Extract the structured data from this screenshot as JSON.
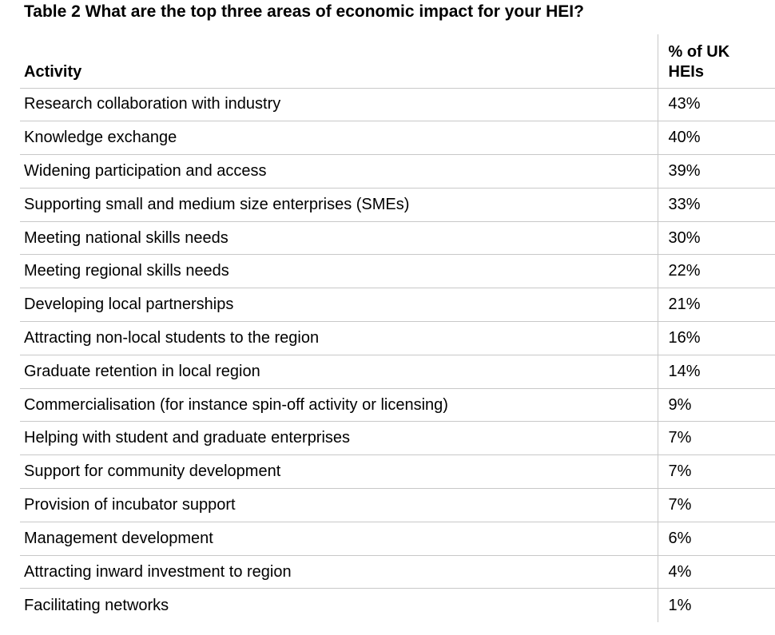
{
  "title": "Table 2 What are the top three areas of economic impact for your HEI?",
  "table": {
    "header": {
      "activity": "Activity",
      "percent": "% of UK\nHEIs"
    },
    "rows": [
      {
        "activity": "Research collaboration with industry",
        "percent": "43%"
      },
      {
        "activity": "Knowledge exchange",
        "percent": "40%"
      },
      {
        "activity": "Widening participation and access",
        "percent": "39%"
      },
      {
        "activity": "Supporting small and medium size enterprises (SMEs)",
        "percent": "33%"
      },
      {
        "activity": "Meeting national skills needs",
        "percent": "30%"
      },
      {
        "activity": "Meeting regional skills needs",
        "percent": "22%"
      },
      {
        "activity": "Developing local partnerships",
        "percent": "21%"
      },
      {
        "activity": "Attracting non-local students to the region",
        "percent": "16%"
      },
      {
        "activity": "Graduate retention in local region",
        "percent": "14%"
      },
      {
        "activity": "Commercialisation (for instance spin-off activity or licensing)",
        "percent": "9%"
      },
      {
        "activity": "Helping with student and graduate enterprises",
        "percent": "7%"
      },
      {
        "activity": "Support for community development",
        "percent": "7%"
      },
      {
        "activity": "Provision of incubator support",
        "percent": "7%"
      },
      {
        "activity": "Management development",
        "percent": "6%"
      },
      {
        "activity": "Attracting inward investment to region",
        "percent": "4%"
      },
      {
        "activity": "Facilitating networks",
        "percent": "1%"
      }
    ]
  },
  "colors": {
    "background": "#ffffff",
    "text": "#000000",
    "border": "#c8c8c8"
  }
}
